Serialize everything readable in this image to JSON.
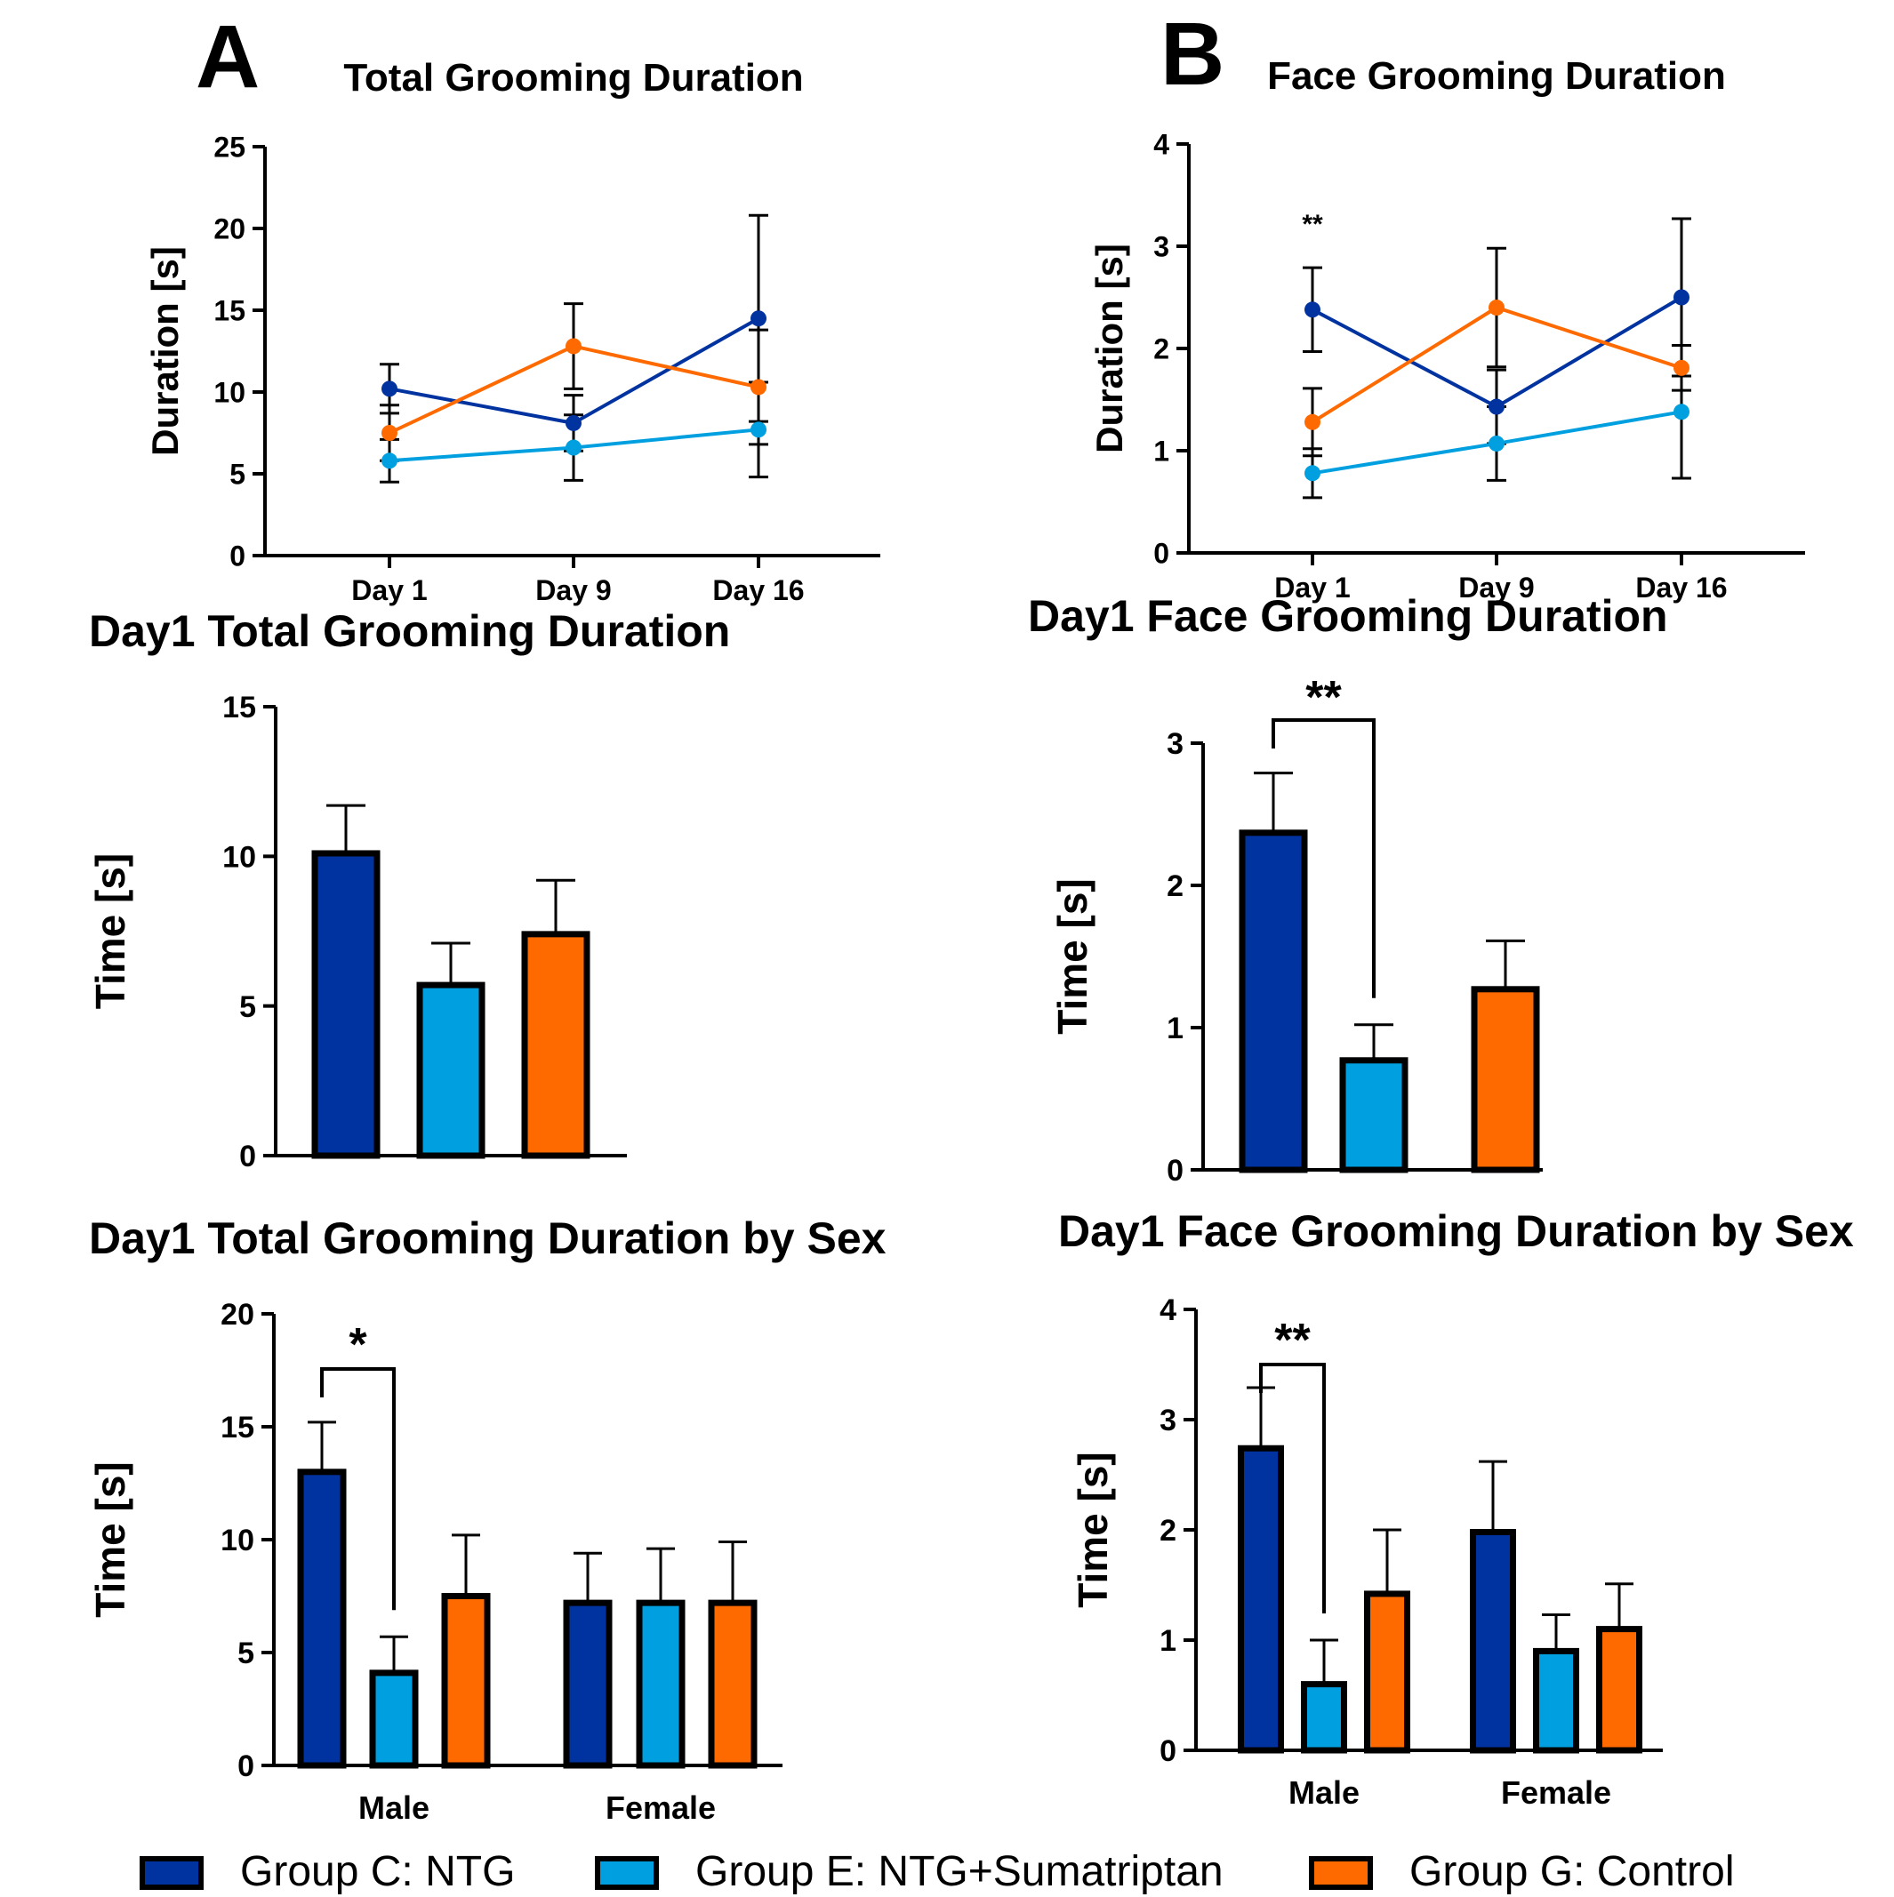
{
  "colors": {
    "group_c": "#0033a0",
    "group_e": "#00a0e0",
    "group_g": "#ff6a00",
    "axis": "#000000",
    "background": "#ffffff"
  },
  "panel_letters": {
    "a": "A",
    "b": "B"
  },
  "legend": [
    {
      "label": "Group C: NTG",
      "color": "#0033a0"
    },
    {
      "label": "Group E: NTG+Sumatriptan",
      "color": "#00a0e0"
    },
    {
      "label": "Group G: Control",
      "color": "#ff6a00"
    }
  ],
  "chart_data": [
    {
      "type": "line",
      "title": "Total Grooming Duration",
      "xlabel": "",
      "ylabel": "Duration [s]",
      "categories": [
        "Day 1",
        "Day 9",
        "Day 16"
      ],
      "ylim": [
        0,
        25
      ],
      "yticks": [
        0,
        5,
        10,
        15,
        20,
        25
      ],
      "series": [
        {
          "name": "Group C: NTG",
          "values": [
            10.2,
            8.1,
            14.5
          ],
          "errors": [
            1.5,
            1.7,
            6.3
          ]
        },
        {
          "name": "Group E: NTG+Sumatriptan",
          "values": [
            5.8,
            6.6,
            7.7
          ],
          "errors": [
            1.3,
            2.0,
            2.9
          ]
        },
        {
          "name": "Group G: Control",
          "values": [
            7.5,
            12.8,
            10.3
          ],
          "errors": [
            1.7,
            2.6,
            3.5
          ]
        }
      ],
      "annotations": []
    },
    {
      "type": "line",
      "title": "Face Grooming Duration",
      "xlabel": "",
      "ylabel": "Duration [s]",
      "categories": [
        "Day 1",
        "Day 9",
        "Day 16"
      ],
      "ylim": [
        0,
        4
      ],
      "yticks": [
        0,
        1,
        2,
        3,
        4
      ],
      "series": [
        {
          "name": "Group C: NTG",
          "values": [
            2.38,
            1.43,
            2.5
          ],
          "errors": [
            0.41,
            0.36,
            0.77
          ]
        },
        {
          "name": "Group E: NTG+Sumatriptan",
          "values": [
            0.78,
            1.07,
            1.38
          ],
          "errors": [
            0.24,
            0.36,
            0.65
          ]
        },
        {
          "name": "Group G: Control",
          "values": [
            1.28,
            2.4,
            1.81
          ],
          "errors": [
            0.33,
            0.58,
            0.22
          ]
        }
      ],
      "annotations": [
        {
          "text": "**",
          "category": "Day 1"
        }
      ]
    },
    {
      "type": "bar",
      "title": "Day1 Total Grooming Duration",
      "xlabel": "",
      "ylabel": "Time [s]",
      "categories": [
        "Group C: NTG",
        "Group E: NTG+Sumatriptan",
        "Group G: Control"
      ],
      "ylim": [
        0,
        15
      ],
      "yticks": [
        0,
        5,
        10,
        15
      ],
      "values": [
        10.1,
        5.7,
        7.4
      ],
      "errors": [
        1.6,
        1.4,
        1.8
      ],
      "annotations": []
    },
    {
      "type": "bar",
      "title": "Day1 Face Grooming Duration",
      "xlabel": "",
      "ylabel": "Time [s]",
      "categories": [
        "Group C: NTG",
        "Group E: NTG+Sumatriptan",
        "Group G: Control"
      ],
      "ylim": [
        0,
        3
      ],
      "yticks": [
        0,
        1,
        2,
        3
      ],
      "values": [
        2.37,
        0.77,
        1.27
      ],
      "errors": [
        0.42,
        0.25,
        0.34
      ],
      "annotations": [
        {
          "text": "**",
          "between": [
            "Group C: NTG",
            "Group E: NTG+Sumatriptan"
          ]
        }
      ]
    },
    {
      "type": "bar",
      "title": "Day1 Total Grooming Duration by Sex",
      "xlabel": "",
      "ylabel": "Time [s]",
      "categories": [
        "Male",
        "Female"
      ],
      "ylim": [
        0,
        20
      ],
      "yticks": [
        0,
        5,
        10,
        15,
        20
      ],
      "series": [
        {
          "name": "Group C: NTG",
          "values": [
            13.0,
            7.2
          ],
          "errors": [
            2.2,
            2.2
          ]
        },
        {
          "name": "Group E: NTG+Sumatriptan",
          "values": [
            4.1,
            7.2
          ],
          "errors": [
            1.6,
            2.4
          ]
        },
        {
          "name": "Group G: Control",
          "values": [
            7.5,
            7.2
          ],
          "errors": [
            2.7,
            2.7
          ]
        }
      ],
      "annotations": [
        {
          "text": "*",
          "category": "Male",
          "between": [
            "Group C: NTG",
            "Group E: NTG+Sumatriptan"
          ]
        }
      ]
    },
    {
      "type": "bar",
      "title": "Day1 Face Grooming Duration by Sex",
      "xlabel": "",
      "ylabel": "Time [s]",
      "categories": [
        "Male",
        "Female"
      ],
      "ylim": [
        0,
        4
      ],
      "yticks": [
        0,
        1,
        2,
        3,
        4
      ],
      "series": [
        {
          "name": "Group C: NTG",
          "values": [
            2.74,
            1.98
          ],
          "errors": [
            0.55,
            0.64
          ]
        },
        {
          "name": "Group E: NTG+Sumatriptan",
          "values": [
            0.6,
            0.9
          ],
          "errors": [
            0.4,
            0.33
          ]
        },
        {
          "name": "Group G: Control",
          "values": [
            1.42,
            1.1
          ],
          "errors": [
            0.58,
            0.41
          ]
        }
      ],
      "annotations": [
        {
          "text": "**",
          "category": "Male",
          "between": [
            "Group C: NTG",
            "Group E: NTG+Sumatriptan"
          ]
        }
      ]
    }
  ]
}
